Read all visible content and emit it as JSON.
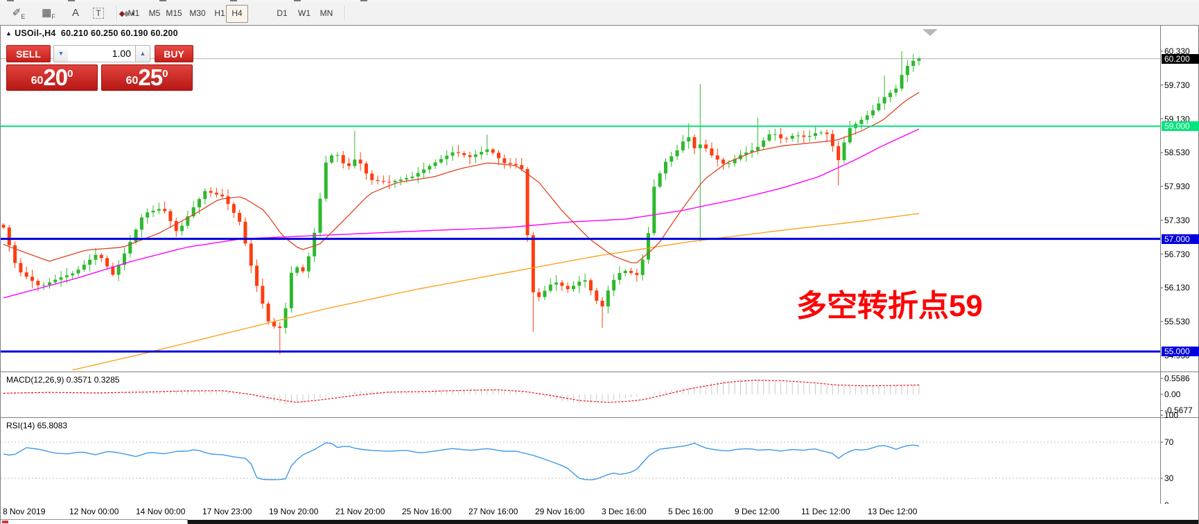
{
  "toolbar": {
    "icons": [
      {
        "name": "expert-advisor-icon",
        "glyph": "✐",
        "sub": "E"
      },
      {
        "name": "grid-f-icon",
        "glyph": "▦",
        "sub": "F"
      },
      {
        "name": "text-a-icon",
        "glyph": "A",
        "sub": ""
      },
      {
        "name": "text-box-icon",
        "glyph": "T",
        "sub": ""
      },
      {
        "name": "shapes-dropdown-icon",
        "glyph": "◆◆",
        "sub": "▾"
      }
    ],
    "timeframes": [
      "M1",
      "M5",
      "M15",
      "M30",
      "H1",
      "H4",
      "D1",
      "W1",
      "MN"
    ],
    "active_timeframe": "H4"
  },
  "chart_header": {
    "up_arrow": "▲",
    "symbol": "USOil-,H4",
    "open": "60.210",
    "high": "60.250",
    "low": "60.190",
    "close": "60.200"
  },
  "trade_panel": {
    "sell_label": "SELL",
    "buy_label": "BUY",
    "volume": "1.00",
    "down_arrow": "▼",
    "up_arrow": "▲",
    "sell_price": {
      "small": "60",
      "big": "20",
      "sup": "0"
    },
    "buy_price": {
      "small": "60",
      "big": "25",
      "sup": "0"
    }
  },
  "annotation": {
    "text": "多空转折点59",
    "color": "#fe0000"
  },
  "price_axis": {
    "ticks": [
      "60.330",
      "59.730",
      "59.130",
      "58.530",
      "57.930",
      "57.330",
      "56.730",
      "56.130",
      "55.530",
      "54.930"
    ],
    "current_price": {
      "value": "60.200",
      "bg": "#000000"
    },
    "levels": [
      {
        "value": "59.000",
        "price": 59.0,
        "color": "#00e57d",
        "line_width": 2
      },
      {
        "value": "57.000",
        "price": 57.0,
        "color": "#0000dd",
        "line_width": 3
      },
      {
        "value": "55.000",
        "price": 55.0,
        "color": "#0000dd",
        "line_width": 3
      }
    ]
  },
  "indicators": {
    "macd": {
      "label": "MACD(12,26,9) 0.3571 0.3285",
      "axis": [
        "0.5586",
        "0.00",
        "-0.5677"
      ]
    },
    "rsi": {
      "label": "RSI(14) 65.8083",
      "axis": [
        "100",
        "70",
        "30",
        "0"
      ]
    }
  },
  "time_axis": {
    "labels": [
      "8 Nov 2019",
      "12 Nov 00:00",
      "14 Nov 00:00",
      "17 Nov 23:00",
      "19 Nov 20:00",
      "21 Nov 20:00",
      "25 Nov 16:00",
      "27 Nov 16:00",
      "29 Nov 16:00",
      "3 Dec 16:00",
      "5 Dec 16:00",
      "9 Dec 12:00",
      "11 Dec 12:00",
      "13 Dec 12:00"
    ]
  },
  "chart_data": {
    "type": "candlestick",
    "symbol": "USOil-",
    "timeframe": "H4",
    "bar_count": 160,
    "first_open": 57.25,
    "main_ylim": [
      54.66,
      60.76
    ],
    "colors": {
      "up": "#2db92d",
      "down": "#ff3d0f",
      "ma_fast_red": "#dd4422",
      "ma_mid_magenta": "#ff00ff",
      "ma_slow_orange": "#ffa21f",
      "current_line": "#b3b3b3",
      "macd_hist": "#c9c9c9",
      "macd_signal": "#ee1111",
      "rsi_line": "#3e98e8",
      "rsi_grid": "#bdbdbd",
      "marker": "#b8b8b8"
    },
    "close_anchors": [
      [
        0,
        57.2
      ],
      [
        0.015,
        56.45
      ],
      [
        0.04,
        56.15
      ],
      [
        0.06,
        56.3
      ],
      [
        0.078,
        56.4
      ],
      [
        0.103,
        56.75
      ],
      [
        0.12,
        56.35
      ],
      [
        0.137,
        56.9
      ],
      [
        0.153,
        57.45
      ],
      [
        0.174,
        57.55
      ],
      [
        0.19,
        57.1
      ],
      [
        0.205,
        57.5
      ],
      [
        0.22,
        57.85
      ],
      [
        0.24,
        57.75
      ],
      [
        0.258,
        57.3
      ],
      [
        0.274,
        56.3
      ],
      [
        0.29,
        55.5
      ],
      [
        0.3,
        55.4
      ],
      [
        0.305,
        55.45
      ],
      [
        0.316,
        56.55
      ],
      [
        0.329,
        56.4
      ],
      [
        0.341,
        57.2
      ],
      [
        0.352,
        58.35
      ],
      [
        0.362,
        58.55
      ],
      [
        0.375,
        58.25
      ],
      [
        0.386,
        58.45
      ],
      [
        0.4,
        58.05
      ],
      [
        0.42,
        58.0
      ],
      [
        0.446,
        58.1
      ],
      [
        0.471,
        58.35
      ],
      [
        0.492,
        58.55
      ],
      [
        0.509,
        58.45
      ],
      [
        0.53,
        58.6
      ],
      [
        0.546,
        58.35
      ],
      [
        0.563,
        58.3
      ],
      [
        0.568,
        58.2
      ],
      [
        0.576,
        56.1
      ],
      [
        0.584,
        55.95
      ],
      [
        0.601,
        56.25
      ],
      [
        0.617,
        56.1
      ],
      [
        0.634,
        56.3
      ],
      [
        0.653,
        55.75
      ],
      [
        0.663,
        56.2
      ],
      [
        0.676,
        56.45
      ],
      [
        0.693,
        56.35
      ],
      [
        0.703,
        56.9
      ],
      [
        0.71,
        57.9
      ],
      [
        0.722,
        58.35
      ],
      [
        0.735,
        58.55
      ],
      [
        0.747,
        58.85
      ],
      [
        0.755,
        58.6
      ],
      [
        0.763,
        58.7
      ],
      [
        0.772,
        58.5
      ],
      [
        0.789,
        58.3
      ],
      [
        0.806,
        58.5
      ],
      [
        0.822,
        58.6
      ],
      [
        0.839,
        58.9
      ],
      [
        0.852,
        58.75
      ],
      [
        0.864,
        58.85
      ],
      [
        0.877,
        58.8
      ],
      [
        0.89,
        58.9
      ],
      [
        0.902,
        58.85
      ],
      [
        0.911,
        58.35
      ],
      [
        0.923,
        58.95
      ],
      [
        0.936,
        59.1
      ],
      [
        0.948,
        59.25
      ],
      [
        0.961,
        59.5
      ],
      [
        0.973,
        59.65
      ],
      [
        0.978,
        59.7
      ],
      [
        0.984,
        60.1
      ],
      [
        0.99,
        60.05
      ],
      [
        0.995,
        60.2
      ],
      [
        1,
        60.2
      ]
    ],
    "wick_overrides": [
      {
        "f": 0.305,
        "lo": 54.95
      },
      {
        "f": 0.386,
        "hi": 58.92
      },
      {
        "f": 0.53,
        "hi": 58.85
      },
      {
        "f": 0.576,
        "lo": 55.35
      },
      {
        "f": 0.653,
        "lo": 55.42
      },
      {
        "f": 0.747,
        "hi": 59.05
      },
      {
        "f": 0.763,
        "hi": 59.75,
        "lo": 56.95
      },
      {
        "f": 0.822,
        "hi": 59.15
      },
      {
        "f": 0.911,
        "lo": 57.95
      },
      {
        "f": 0.961,
        "hi": 59.9
      },
      {
        "f": 0.984,
        "hi": 60.33
      }
    ],
    "ma_fast_red": [
      [
        0,
        56.9
      ],
      [
        0.05,
        56.6
      ],
      [
        0.09,
        56.8
      ],
      [
        0.13,
        56.85
      ],
      [
        0.17,
        57.1
      ],
      [
        0.21,
        57.45
      ],
      [
        0.235,
        57.7
      ],
      [
        0.26,
        57.75
      ],
      [
        0.285,
        57.5
      ],
      [
        0.305,
        57.05
      ],
      [
        0.325,
        56.8
      ],
      [
        0.345,
        56.9
      ],
      [
        0.37,
        57.3
      ],
      [
        0.4,
        57.8
      ],
      [
        0.43,
        58.0
      ],
      [
        0.47,
        58.1
      ],
      [
        0.5,
        58.25
      ],
      [
        0.53,
        58.35
      ],
      [
        0.56,
        58.3
      ],
      [
        0.585,
        58.0
      ],
      [
        0.61,
        57.5
      ],
      [
        0.64,
        57.0
      ],
      [
        0.665,
        56.7
      ],
      [
        0.69,
        56.55
      ],
      [
        0.715,
        56.9
      ],
      [
        0.74,
        57.5
      ],
      [
        0.765,
        58.05
      ],
      [
        0.79,
        58.35
      ],
      [
        0.82,
        58.55
      ],
      [
        0.85,
        58.65
      ],
      [
        0.88,
        58.7
      ],
      [
        0.91,
        58.75
      ],
      [
        0.935,
        58.9
      ],
      [
        0.96,
        59.1
      ],
      [
        0.985,
        59.45
      ],
      [
        1,
        59.6
      ]
    ],
    "ma_mid_magenta": [
      [
        0,
        55.95
      ],
      [
        0.08,
        56.3
      ],
      [
        0.14,
        56.6
      ],
      [
        0.2,
        56.85
      ],
      [
        0.26,
        57.0
      ],
      [
        0.33,
        57.05
      ],
      [
        0.4,
        57.1
      ],
      [
        0.47,
        57.15
      ],
      [
        0.55,
        57.2
      ],
      [
        0.62,
        57.3
      ],
      [
        0.68,
        57.35
      ],
      [
        0.74,
        57.5
      ],
      [
        0.8,
        57.7
      ],
      [
        0.85,
        57.9
      ],
      [
        0.89,
        58.1
      ],
      [
        0.93,
        58.4
      ],
      [
        0.96,
        58.65
      ],
      [
        1,
        58.95
      ]
    ],
    "ma_slow_orange": [
      [
        0.07,
        54.65
      ],
      [
        0.15,
        54.95
      ],
      [
        0.25,
        55.35
      ],
      [
        0.35,
        55.75
      ],
      [
        0.45,
        56.1
      ],
      [
        0.55,
        56.4
      ],
      [
        0.65,
        56.7
      ],
      [
        0.75,
        56.95
      ],
      [
        0.85,
        57.15
      ],
      [
        0.93,
        57.3
      ],
      [
        1,
        57.45
      ]
    ],
    "macd": {
      "params": "12,26,9",
      "value": 0.3571,
      "signal_value": 0.3285,
      "ylim": [
        -0.777,
        0.777
      ],
      "hist_anchors": [
        [
          0,
          0.05
        ],
        [
          0.03,
          0.1
        ],
        [
          0.06,
          0.06
        ],
        [
          0.09,
          0.02
        ],
        [
          0.12,
          0.05
        ],
        [
          0.15,
          0.1
        ],
        [
          0.18,
          0.12
        ],
        [
          0.21,
          0.15
        ],
        [
          0.24,
          0.12
        ],
        [
          0.26,
          0.05
        ],
        [
          0.28,
          -0.12
        ],
        [
          0.3,
          -0.3
        ],
        [
          0.31,
          -0.35
        ],
        [
          0.33,
          -0.25
        ],
        [
          0.35,
          -0.1
        ],
        [
          0.37,
          0.05
        ],
        [
          0.39,
          0.12
        ],
        [
          0.42,
          0.1
        ],
        [
          0.45,
          0.08
        ],
        [
          0.48,
          0.12
        ],
        [
          0.51,
          0.17
        ],
        [
          0.53,
          0.2
        ],
        [
          0.55,
          0.15
        ],
        [
          0.57,
          0.05
        ],
        [
          0.59,
          -0.1
        ],
        [
          0.61,
          -0.25
        ],
        [
          0.63,
          -0.3
        ],
        [
          0.65,
          -0.27
        ],
        [
          0.67,
          -0.18
        ],
        [
          0.69,
          -0.08
        ],
        [
          0.7,
          0
        ],
        [
          0.72,
          0.12
        ],
        [
          0.74,
          0.2
        ],
        [
          0.76,
          0.3
        ],
        [
          0.78,
          0.45
        ],
        [
          0.8,
          0.5
        ],
        [
          0.82,
          0.52
        ],
        [
          0.84,
          0.48
        ],
        [
          0.86,
          0.42
        ],
        [
          0.88,
          0.38
        ],
        [
          0.9,
          0.33
        ],
        [
          0.92,
          0.3
        ],
        [
          0.94,
          0.3
        ],
        [
          0.96,
          0.32
        ],
        [
          0.98,
          0.34
        ],
        [
          1,
          0.357
        ]
      ],
      "signal_anchors": [
        [
          0,
          0.04
        ],
        [
          0.05,
          0.07
        ],
        [
          0.1,
          0.05
        ],
        [
          0.15,
          0.08
        ],
        [
          0.2,
          0.12
        ],
        [
          0.24,
          0.13
        ],
        [
          0.27,
          0
        ],
        [
          0.3,
          -0.18
        ],
        [
          0.32,
          -0.28
        ],
        [
          0.35,
          -0.18
        ],
        [
          0.38,
          -0.05
        ],
        [
          0.42,
          0.08
        ],
        [
          0.46,
          0.1
        ],
        [
          0.5,
          0.14
        ],
        [
          0.54,
          0.16
        ],
        [
          0.57,
          0.1
        ],
        [
          0.6,
          -0.05
        ],
        [
          0.63,
          -0.22
        ],
        [
          0.66,
          -0.28
        ],
        [
          0.68,
          -0.25
        ],
        [
          0.7,
          -0.18
        ],
        [
          0.71,
          -0.1
        ],
        [
          0.73,
          0.05
        ],
        [
          0.75,
          0.2
        ],
        [
          0.79,
          0.42
        ],
        [
          0.82,
          0.5
        ],
        [
          0.85,
          0.48
        ],
        [
          0.88,
          0.42
        ],
        [
          0.91,
          0.33
        ],
        [
          0.94,
          0.3
        ],
        [
          0.97,
          0.31
        ],
        [
          1,
          0.328
        ]
      ]
    },
    "rsi": {
      "period": 14,
      "value": 65.8083,
      "ylim": [
        0,
        100
      ],
      "levels": [
        70,
        30
      ],
      "anchors": [
        [
          0,
          57
        ],
        [
          0.01,
          55
        ],
        [
          0.025,
          64
        ],
        [
          0.04,
          62
        ],
        [
          0.055,
          58
        ],
        [
          0.07,
          57
        ],
        [
          0.085,
          59.5
        ],
        [
          0.1,
          56
        ],
        [
          0.115,
          60
        ],
        [
          0.13,
          57.5
        ],
        [
          0.145,
          54
        ],
        [
          0.16,
          59
        ],
        [
          0.175,
          57
        ],
        [
          0.19,
          60
        ],
        [
          0.2,
          60
        ],
        [
          0.21,
          62
        ],
        [
          0.225,
          57
        ],
        [
          0.24,
          56
        ],
        [
          0.25,
          54
        ],
        [
          0.26,
          52.5
        ],
        [
          0.268,
          52
        ],
        [
          0.277,
          30
        ],
        [
          0.285,
          28.5
        ],
        [
          0.3,
          28.5
        ],
        [
          0.308,
          29
        ],
        [
          0.315,
          45
        ],
        [
          0.325,
          55
        ],
        [
          0.34,
          62
        ],
        [
          0.355,
          71
        ],
        [
          0.365,
          64
        ],
        [
          0.375,
          66
        ],
        [
          0.385,
          63
        ],
        [
          0.4,
          61
        ],
        [
          0.42,
          60
        ],
        [
          0.44,
          61
        ],
        [
          0.455,
          58
        ],
        [
          0.47,
          60
        ],
        [
          0.49,
          63
        ],
        [
          0.51,
          61
        ],
        [
          0.53,
          63
        ],
        [
          0.545,
          60
        ],
        [
          0.56,
          60
        ],
        [
          0.58,
          55
        ],
        [
          0.6,
          48
        ],
        [
          0.615,
          42
        ],
        [
          0.63,
          29
        ],
        [
          0.645,
          28
        ],
        [
          0.655,
          32
        ],
        [
          0.665,
          36
        ],
        [
          0.675,
          34
        ],
        [
          0.69,
          38
        ],
        [
          0.705,
          55
        ],
        [
          0.715,
          62
        ],
        [
          0.73,
          64
        ],
        [
          0.745,
          66
        ],
        [
          0.755,
          69
        ],
        [
          0.765,
          64
        ],
        [
          0.775,
          62
        ],
        [
          0.79,
          60
        ],
        [
          0.8,
          62
        ],
        [
          0.815,
          63
        ],
        [
          0.825,
          61
        ],
        [
          0.835,
          62
        ],
        [
          0.85,
          60
        ],
        [
          0.86,
          62
        ],
        [
          0.875,
          61
        ],
        [
          0.885,
          63
        ],
        [
          0.895,
          60
        ],
        [
          0.905,
          58
        ],
        [
          0.912,
          52
        ],
        [
          0.92,
          58
        ],
        [
          0.93,
          62
        ],
        [
          0.94,
          61
        ],
        [
          0.95,
          64
        ],
        [
          0.96,
          67
        ],
        [
          0.97,
          64
        ],
        [
          0.975,
          62
        ],
        [
          0.985,
          66
        ],
        [
          0.995,
          67
        ],
        [
          1,
          65.8
        ]
      ]
    }
  }
}
